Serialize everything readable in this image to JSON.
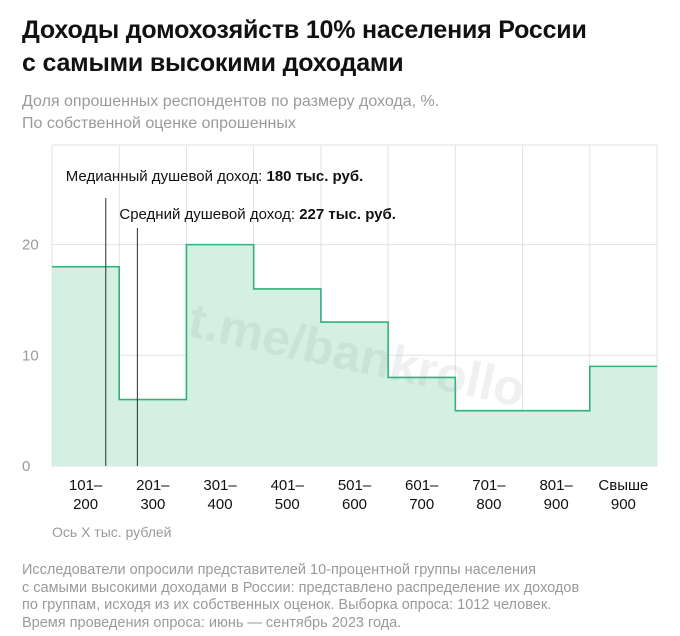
{
  "title": {
    "line1": "Доходы домохозяйств 10% населения России",
    "line2": "с самыми высокими доходами"
  },
  "subtitle": {
    "line1": "Доля опрошенных респондентов по размеру дохода, %.",
    "line2": "По собственной оценке опрошенных"
  },
  "chart_data": {
    "type": "bar",
    "categories": [
      [
        "101–",
        "200"
      ],
      [
        "201–",
        "300"
      ],
      [
        "301–",
        "400"
      ],
      [
        "401–",
        "500"
      ],
      [
        "501–",
        "600"
      ],
      [
        "601–",
        "700"
      ],
      [
        "701–",
        "800"
      ],
      [
        "801–",
        "900"
      ],
      [
        "Свыше",
        "900"
      ]
    ],
    "values": [
      18,
      6,
      20,
      16,
      13,
      8,
      5,
      5,
      9
    ],
    "ylim": [
      0,
      29
    ],
    "yticks": [
      0,
      10,
      20
    ],
    "xlabel": "Ось X тыс. рублей",
    "ylabel": "",
    "grid": true,
    "annotations": [
      {
        "label": "Медианный душевой доход: ",
        "value": "180 тыс. руб.",
        "x": 180
      },
      {
        "label": "Средний душевой доход: ",
        "value": "227 тыс. руб.",
        "x": 227
      }
    ],
    "watermark": "t.me/bankrollo"
  },
  "footnote": {
    "line1": "Исследователи опросили представителей 10-процентной группы населения",
    "line2": "с самыми высокими доходами в России: представлено распределение их доходов",
    "line3": "по группам, исходя из их собственных оценок. Выборка опроса: 1012 человек.",
    "line4": "Время проведения опроса: июнь — сентябрь 2023 года."
  },
  "colors": {
    "fill": "#d3f0e3",
    "stroke": "#33b07a",
    "grid": "#e2e2e2",
    "text": "#111111",
    "muted": "#9a9a9a",
    "marker": "#2b2b2b"
  }
}
